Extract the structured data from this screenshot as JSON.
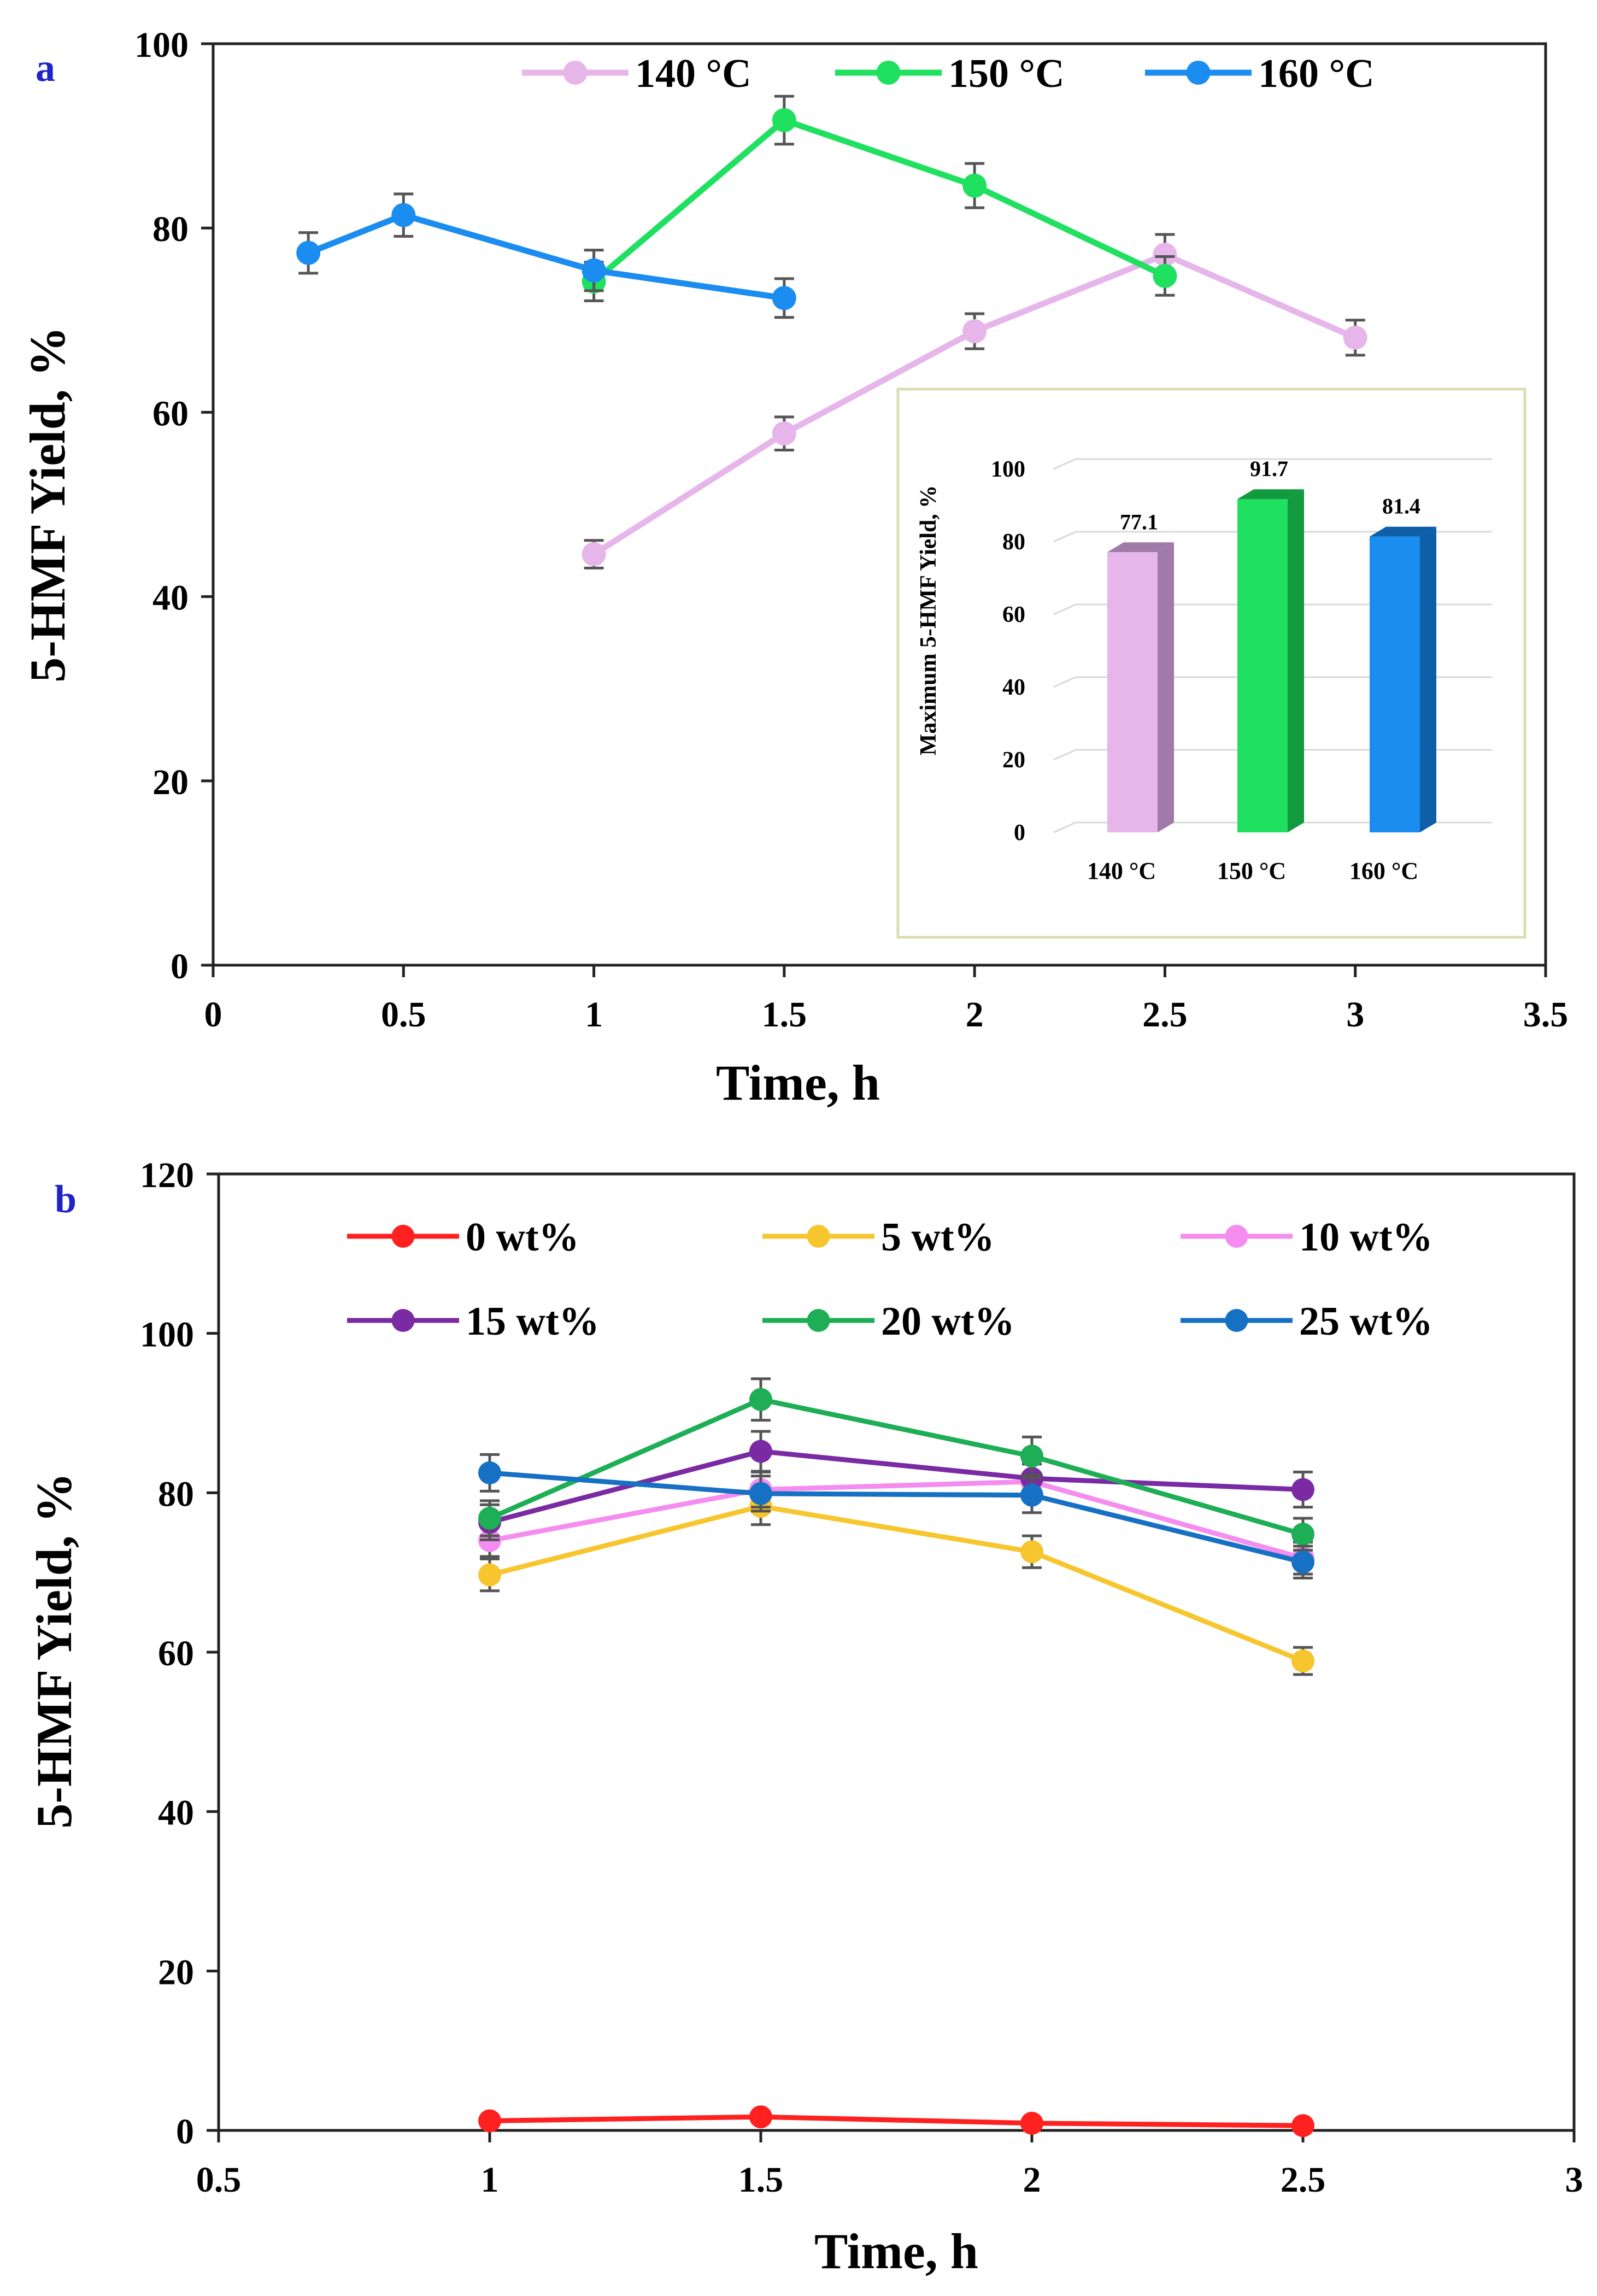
{
  "chart_data": [
    {
      "type": "line",
      "panel_label": "a",
      "xlabel": "Time, h",
      "ylabel": "5-HMF Yield, %",
      "xlim": [
        0,
        3.5
      ],
      "ylim": [
        0,
        100
      ],
      "xticks": [
        "0",
        "0.5",
        "1",
        "1.5",
        "2",
        "2.5",
        "3",
        "3.5"
      ],
      "yticks": [
        "0",
        "20",
        "40",
        "60",
        "80",
        "100"
      ],
      "grid": false,
      "legend_position": "top",
      "series": [
        {
          "name": "140 °C",
          "color": "#e6b6ea",
          "x": [
            1,
            1.5,
            2,
            2.5,
            3
          ],
          "values": [
            44.6,
            57.7,
            68.8,
            77.1,
            68.1
          ],
          "errors": [
            1.5,
            1.8,
            1.9,
            2.2,
            1.9
          ]
        },
        {
          "name": "150 °C",
          "color": "#20e060",
          "x": [
            1,
            1.5,
            2,
            2.5
          ],
          "values": [
            74.2,
            91.7,
            84.6,
            74.8
          ],
          "errors": [
            2.1,
            2.6,
            2.4,
            2.1
          ]
        },
        {
          "name": "160 °C",
          "color": "#1b8cf0",
          "x": [
            0.25,
            0.5,
            1,
            1.5
          ],
          "values": [
            77.3,
            81.4,
            75.4,
            72.4
          ],
          "errors": [
            2.2,
            2.3,
            2.2,
            2.1
          ]
        }
      ],
      "inset": {
        "type": "bar",
        "ylabel": "Maximum 5-HMF Yield, %",
        "ylim": [
          0,
          100
        ],
        "yticks": [
          "0",
          "20",
          "40",
          "60",
          "80",
          "100"
        ],
        "categories": [
          "140 °C",
          "150 °C",
          "160 °C"
        ],
        "values": [
          77.1,
          91.7,
          81.4
        ],
        "value_labels": [
          "77.1",
          "91.7",
          "81.4"
        ],
        "colors": [
          "#e6b6ea",
          "#20e060",
          "#1b8cf0"
        ],
        "side_colors": [
          "#a07aa8",
          "#149a3e",
          "#0e5ea8"
        ]
      }
    },
    {
      "type": "line",
      "panel_label": "b",
      "xlabel": "Time, h",
      "ylabel": "5-HMF Yield, %",
      "xlim": [
        0.5,
        3
      ],
      "ylim": [
        0,
        120
      ],
      "xticks": [
        "0.5",
        "1",
        "1.5",
        "2",
        "2.5",
        "3"
      ],
      "yticks": [
        "0",
        "20",
        "40",
        "60",
        "80",
        "100",
        "120"
      ],
      "grid": false,
      "legend_position": "top",
      "series": [
        {
          "name": "0 wt%",
          "color": "#ff2020",
          "x": [
            1,
            1.5,
            2,
            2.5
          ],
          "values": [
            1.2,
            1.7,
            0.9,
            0.6
          ],
          "errors": [
            0,
            0,
            0,
            0
          ]
        },
        {
          "name": "5 wt%",
          "color": "#f7c62e",
          "x": [
            1,
            1.5,
            2,
            2.5
          ],
          "values": [
            69.7,
            78.3,
            72.6,
            58.9
          ],
          "errors": [
            2.0,
            2.3,
            2.0,
            1.7
          ]
        },
        {
          "name": "10 wt%",
          "color": "#f58cf0",
          "x": [
            1,
            1.5,
            2,
            2.5
          ],
          "values": [
            74.0,
            80.4,
            81.4,
            71.8
          ],
          "errors": [
            2.0,
            2.2,
            2.2,
            2.0
          ]
        },
        {
          "name": "15 wt%",
          "color": "#7a2aa2",
          "x": [
            1,
            1.5,
            2,
            2.5
          ],
          "values": [
            76.3,
            85.2,
            81.8,
            80.4
          ],
          "errors": [
            2.2,
            2.5,
            2.3,
            2.2
          ]
        },
        {
          "name": "20 wt%",
          "color": "#1eae56",
          "x": [
            1,
            1.5,
            2,
            2.5
          ],
          "values": [
            76.8,
            91.7,
            84.6,
            74.8
          ],
          "errors": [
            2.2,
            2.6,
            2.4,
            2.0
          ]
        },
        {
          "name": "25 wt%",
          "color": "#1670c4",
          "x": [
            1,
            1.5,
            2,
            2.5
          ],
          "values": [
            82.5,
            79.9,
            79.7,
            71.3
          ],
          "errors": [
            2.3,
            2.2,
            2.2,
            2.0
          ]
        }
      ]
    }
  ]
}
